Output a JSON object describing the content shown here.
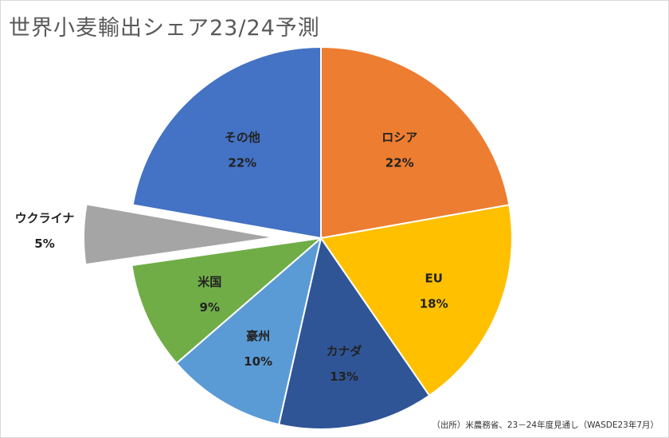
{
  "chart_data": {
    "type": "pie",
    "title": "世界小麦輸出シェア23/24予測",
    "unit": "%",
    "slices": [
      {
        "name": "ロシア",
        "value": 22,
        "label": "22%",
        "color": "#ED7D31",
        "exploded": false
      },
      {
        "name": "EU",
        "value": 18,
        "label": "18%",
        "color": "#FFC000",
        "exploded": false
      },
      {
        "name": "カナダ",
        "value": 13,
        "label": "13%",
        "color": "#2F5597",
        "exploded": false
      },
      {
        "name": "豪州",
        "value": 10,
        "label": "10%",
        "color": "#5B9BD5",
        "exploded": false
      },
      {
        "name": "米国",
        "value": 9,
        "label": "9%",
        "color": "#70AD47",
        "exploded": false
      },
      {
        "name": "ウクライナ",
        "value": 5,
        "label": "5%",
        "color": "#A5A5A5",
        "exploded": true
      },
      {
        "name": "その他",
        "value": 22,
        "label": "22%",
        "color": "#4472C4",
        "exploded": false
      }
    ]
  },
  "source_note": "（出所）米農務省、23－24年度見通し（WASDE23年7月）"
}
